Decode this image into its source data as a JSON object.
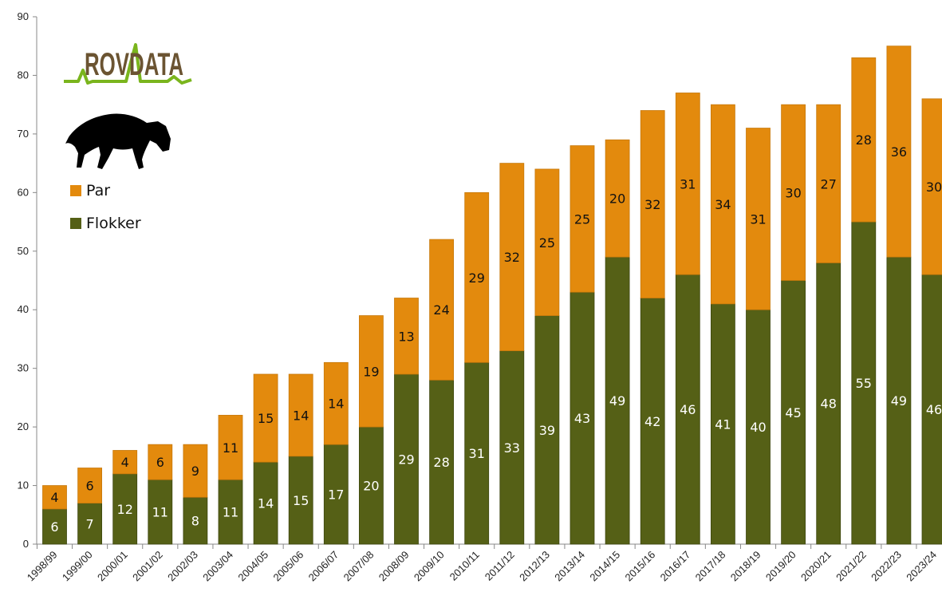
{
  "logo": {
    "text": "ROVDATA",
    "text_color": "#6b5432",
    "line_color": "#7ab51d"
  },
  "legend": {
    "items": [
      {
        "label": "Par",
        "color": "#e38a0d"
      },
      {
        "label": "Flokker",
        "color": "#556016"
      }
    ]
  },
  "chart_data": {
    "type": "bar",
    "stacked": true,
    "categories": [
      "1998/99",
      "1999/00",
      "2000/01",
      "2001/02",
      "2002/03",
      "2003/04",
      "2004/05",
      "2005/06",
      "2006/07",
      "2007/08",
      "2008/09",
      "2009/10",
      "2010/11",
      "2011/12",
      "2012/13",
      "2013/14",
      "2014/15",
      "2015/16",
      "2016/17",
      "2017/18",
      "2018/19",
      "2019/20",
      "2020/21",
      "2021/22",
      "2022/23",
      "2023/24"
    ],
    "series": [
      {
        "name": "Flokker",
        "color": "#556016",
        "values": [
          6,
          7,
          12,
          11,
          8,
          11,
          14,
          15,
          17,
          20,
          29,
          28,
          31,
          33,
          39,
          43,
          49,
          42,
          46,
          41,
          40,
          45,
          48,
          55,
          49,
          46
        ]
      },
      {
        "name": "Par",
        "color": "#e38a0d",
        "values": [
          4,
          6,
          4,
          6,
          9,
          11,
          15,
          14,
          14,
          19,
          13,
          24,
          29,
          32,
          25,
          25,
          20,
          32,
          31,
          34,
          31,
          30,
          27,
          28,
          36,
          30
        ]
      }
    ],
    "ylim": [
      0,
      90
    ],
    "yticks": [
      0,
      10,
      20,
      30,
      40,
      50,
      60,
      70,
      80,
      90
    ],
    "grid": false,
    "legend_position": "left",
    "title": "",
    "xlabel": "",
    "ylabel": ""
  }
}
